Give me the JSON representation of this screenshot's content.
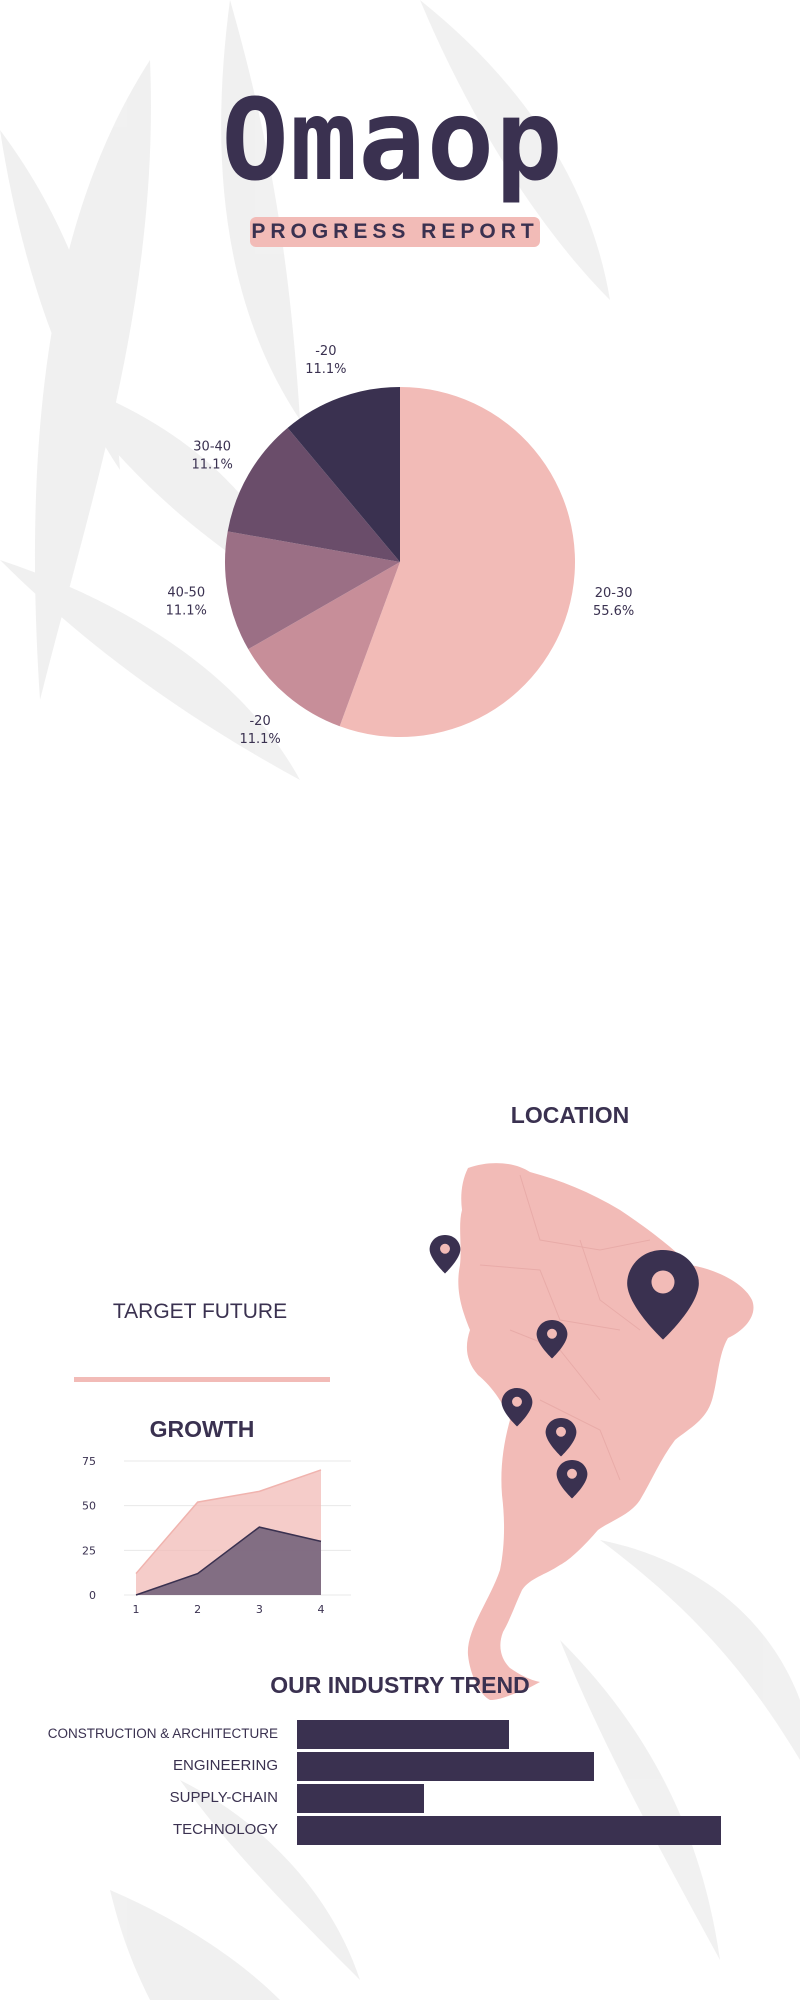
{
  "header": {
    "title": "Omaop",
    "subtitle": "PROGRESS REPORT"
  },
  "colors": {
    "navy": "#3a3150",
    "pink": "#f2bbb7",
    "slice_colors": [
      "#f2bbb7",
      "#c78e99",
      "#9b6f85",
      "#6a4d6a",
      "#3a3150"
    ]
  },
  "location": {
    "heading": "LOCATION",
    "pins": [
      "map-pin-icon",
      "map-pin-icon",
      "map-pin-icon",
      "map-pin-icon",
      "map-pin-icon",
      "map-pin-icon"
    ]
  },
  "target": {
    "heading": "TARGET FUTURE"
  },
  "growth": {
    "heading": "GROWTH"
  },
  "trend": {
    "heading": "OUR INDUSTRY TREND"
  },
  "chart_data": [
    {
      "type": "pie",
      "slices": [
        {
          "label": "20-30",
          "value": 55.6,
          "display": "55.6%"
        },
        {
          "label": "-20",
          "value": 11.1,
          "display": "11.1%"
        },
        {
          "label": "40-50",
          "value": 11.1,
          "display": "11.1%"
        },
        {
          "label": "30-40",
          "value": 11.1,
          "display": "11.1%"
        },
        {
          "label": "-20",
          "value": 11.1,
          "display": "11.1%"
        }
      ]
    },
    {
      "type": "area",
      "x": [
        1,
        2,
        3,
        4
      ],
      "series": [
        {
          "values": [
            12,
            52,
            58,
            70
          ],
          "color": "#f2bbb7"
        },
        {
          "values": [
            0,
            12,
            38,
            30
          ],
          "color": "#7b6880"
        }
      ],
      "yticks": [
        0,
        25,
        50,
        75
      ],
      "ylim": [
        0,
        75
      ],
      "xlim": [
        1,
        4
      ],
      "grid": true
    },
    {
      "type": "bar",
      "orientation": "horizontal",
      "categories": [
        "CONSTRUCTION & ARCHITECTURE",
        "ENGINEERING",
        "SUPPLY-CHAIN",
        "TECHNOLOGY"
      ],
      "values": [
        50,
        70,
        30,
        100
      ],
      "xlim": [
        0,
        100
      ]
    }
  ]
}
